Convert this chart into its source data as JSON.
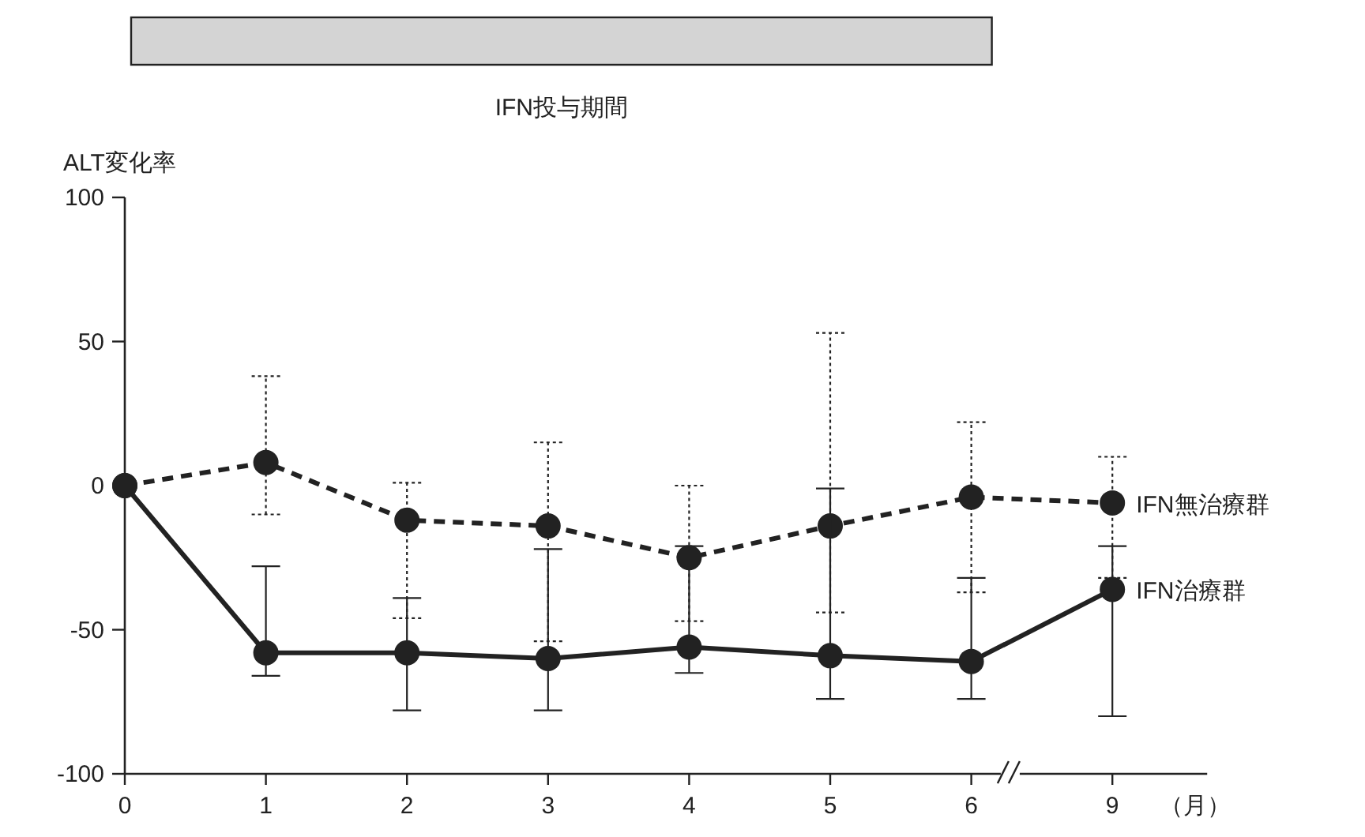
{
  "chart_data": {
    "type": "line",
    "xlabel": "（月）",
    "ylabel": "ALT変化率",
    "categories": [
      "0",
      "1",
      "2",
      "3",
      "4",
      "5",
      "6",
      "9"
    ],
    "ylim": [
      -100,
      100
    ],
    "yticks": [
      -100,
      -50,
      0,
      50,
      100
    ],
    "grid": false,
    "legend": "right",
    "marker": "circle",
    "series": [
      {
        "name": "IFN無治療群",
        "color": "#222222",
        "line_style": "dashed",
        "values": [
          0,
          8,
          -12,
          -14,
          -25,
          -14,
          -4,
          -6
        ],
        "errors": [
          null,
          [
            -10,
            38
          ],
          [
            -46,
            1
          ],
          [
            -54,
            15
          ],
          [
            -47,
            0
          ],
          [
            -44,
            53
          ],
          [
            -37,
            22
          ],
          [
            -32,
            10
          ]
        ]
      },
      {
        "name": "IFN治療群",
        "color": "#222222",
        "line_style": "solid",
        "values": [
          0,
          -58,
          -58,
          -60,
          -56,
          -59,
          -61,
          -36
        ],
        "errors": [
          null,
          [
            -66,
            -28
          ],
          [
            -78,
            -39
          ],
          [
            -78,
            -22
          ],
          [
            -65,
            -21
          ],
          [
            -74,
            -1
          ],
          [
            -74,
            -32
          ],
          [
            -80,
            -21
          ]
        ]
      }
    ],
    "annotations": [
      "IFN投与期間"
    ]
  }
}
